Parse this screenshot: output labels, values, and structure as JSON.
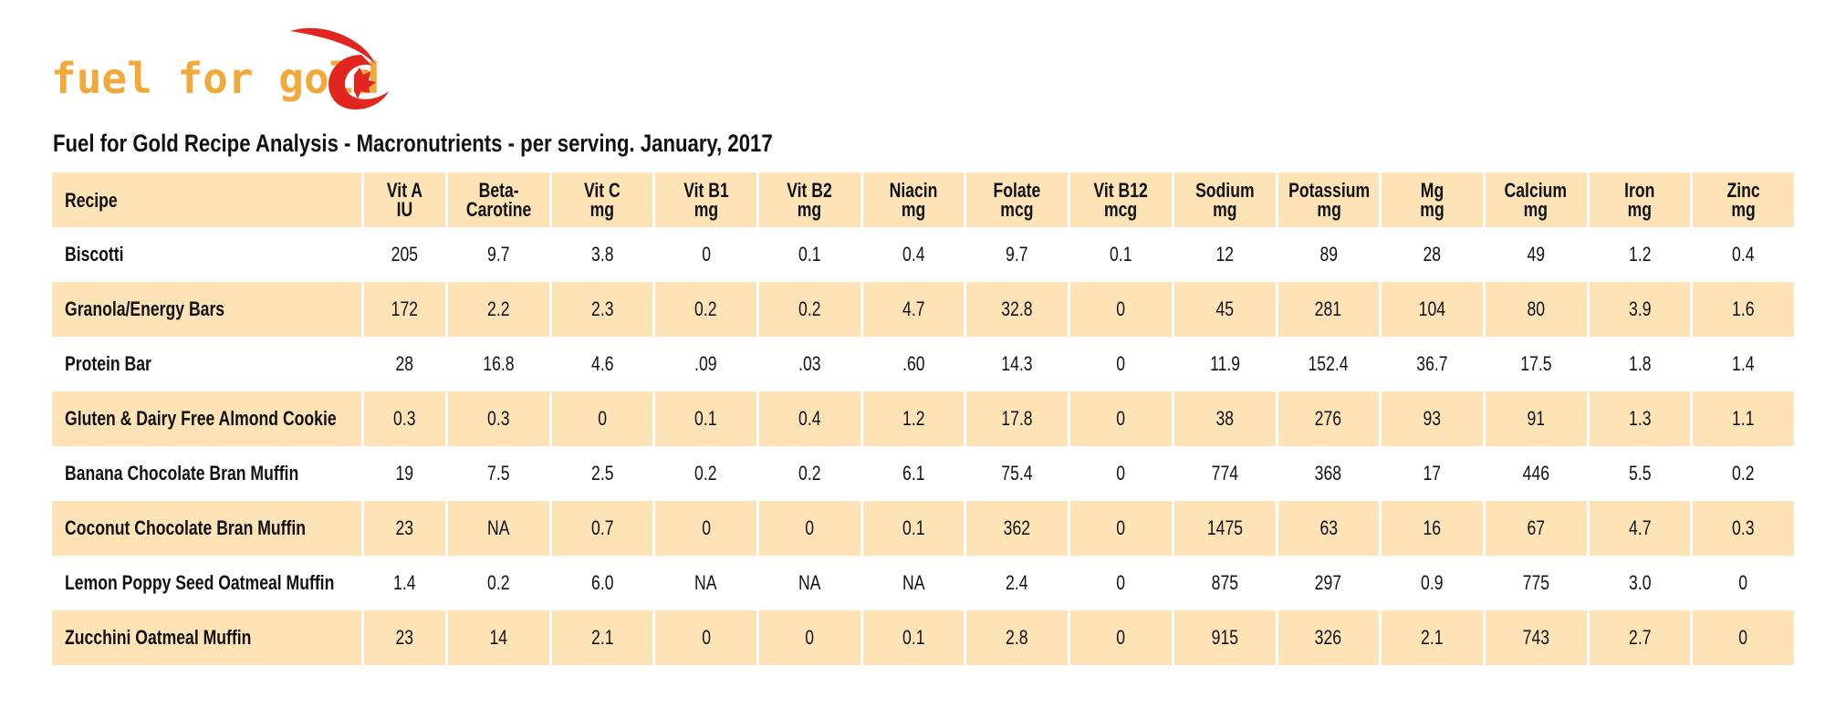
{
  "logo": "fuel for gold",
  "title": "Fuel for Gold Recipe Analysis - Macronutrients - per serving. January, 2017",
  "table": {
    "header": [
      [
        "Recipe"
      ],
      [
        "Vit A",
        "IU"
      ],
      [
        "Beta-",
        "Carotine"
      ],
      [
        "Vit C",
        "mg"
      ],
      [
        "Vit B1",
        "mg"
      ],
      [
        "Vit B2",
        "mg"
      ],
      [
        "Niacin",
        "mg"
      ],
      [
        "Folate",
        "mcg"
      ],
      [
        "Vit B12",
        "mcg"
      ],
      [
        "Sodium",
        "mg"
      ],
      [
        "Potassium",
        "mg"
      ],
      [
        "Mg",
        "mg"
      ],
      [
        "Calcium",
        "mg"
      ],
      [
        "Iron",
        "mg"
      ],
      [
        "Zinc",
        "mg"
      ]
    ],
    "rows": [
      [
        "Biscotti",
        "205",
        "9.7",
        "3.8",
        "0",
        "0.1",
        "0.4",
        "9.7",
        "0.1",
        "12",
        "89",
        "28",
        "49",
        "1.2",
        "0.4"
      ],
      [
        "Granola/Energy Bars",
        "172",
        "2.2",
        "2.3",
        "0.2",
        "0.2",
        "4.7",
        "32.8",
        "0",
        "45",
        "281",
        "104",
        "80",
        "3.9",
        "1.6"
      ],
      [
        "Protein Bar",
        "28",
        "16.8",
        "4.6",
        ".09",
        ".03",
        ".60",
        "14.3",
        "0",
        "11.9",
        "152.4",
        "36.7",
        "17.5",
        "1.8",
        "1.4"
      ],
      [
        "Gluten & Dairy Free Almond Cookie",
        "0.3",
        "0.3",
        "0",
        "0.1",
        "0.4",
        "1.2",
        "17.8",
        "0",
        "38",
        "276",
        "93",
        "91",
        "1.3",
        "1.1"
      ],
      [
        "Banana Chocolate Bran Muffin",
        "19",
        "7.5",
        "2.5",
        "0.2",
        "0.2",
        "6.1",
        "75.4",
        "0",
        "774",
        "368",
        "17",
        "446",
        "5.5",
        "0.2"
      ],
      [
        "Coconut Chocolate Bran Muffin",
        "23",
        "NA",
        "0.7",
        "0",
        "0",
        "0.1",
        "362",
        "0",
        "1475",
        "63",
        "16",
        "67",
        "4.7",
        "0.3"
      ],
      [
        "Lemon Poppy Seed Oatmeal Muffin",
        "1.4",
        "0.2",
        "6.0",
        "NA",
        "NA",
        "NA",
        "2.4",
        "0",
        "875",
        "297",
        "0.9",
        "775",
        "3.0",
        "0"
      ],
      [
        "Zucchini Oatmeal Muffin",
        "23",
        "14",
        "2.1",
        "0",
        "0",
        "0.1",
        "2.8",
        "0",
        "915",
        "326",
        "2.1",
        "743",
        "2.7",
        "0"
      ]
    ]
  }
}
